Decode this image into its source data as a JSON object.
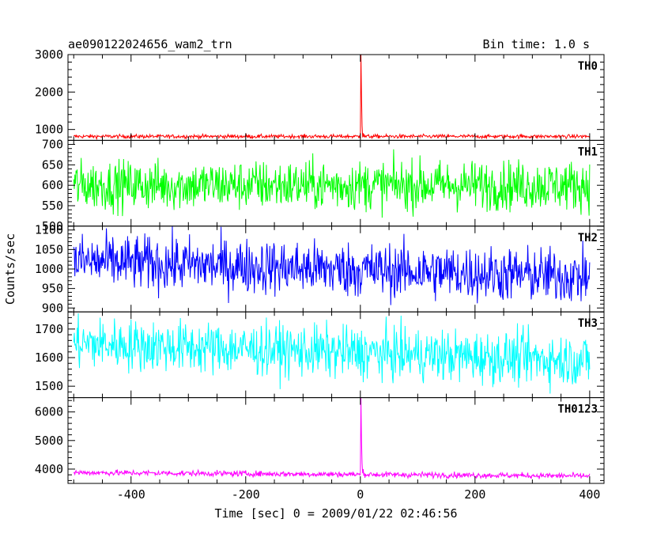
{
  "chart_data": {
    "type": "line",
    "title": "ae090122024656_wam2_trn",
    "subtitle": "Bin time: 1.0 s",
    "xlabel": "Time [sec] 0 = 2009/01/22 02:46:56",
    "ylabel": "Counts/sec",
    "xlim": [
      -510,
      425
    ],
    "xticks": [
      -400,
      -200,
      0,
      200,
      400
    ],
    "grid": false,
    "panels": [
      {
        "name": "TH0",
        "color": "#ff0000",
        "ylim": [
          710,
          3000
        ],
        "yticks": [
          1000,
          2000,
          3000
        ],
        "x_range": [
          -500,
          400
        ],
        "baseline": 815,
        "noise": 25,
        "burst": {
          "peak_time": 1,
          "peak_value": 3000,
          "decay_points": [
            [
              2,
              1900
            ],
            [
              3,
              1100
            ],
            [
              5,
              900
            ]
          ]
        }
      },
      {
        "name": "TH1",
        "color": "#00ff00",
        "ylim": [
          500,
          710
        ],
        "yticks": [
          500,
          550,
          600,
          650,
          700
        ],
        "x_range": [
          -500,
          400
        ],
        "baseline": 600,
        "noise": 30
      },
      {
        "name": "TH2",
        "color": "#0000ff",
        "ylim": [
          890,
          1110
        ],
        "yticks": [
          900,
          950,
          1000,
          1050,
          1100
        ],
        "x_range": [
          -500,
          400
        ],
        "baseline_start": 1020,
        "baseline_end": 980,
        "noise": 35
      },
      {
        "name": "TH3",
        "color": "#00ffff",
        "ylim": [
          1460,
          1760
        ],
        "yticks": [
          1500,
          1600,
          1700
        ],
        "x_range": [
          -500,
          400
        ],
        "baseline_start": 1650,
        "baseline_end": 1590,
        "noise": 45
      },
      {
        "name": "TH0123",
        "color": "#ff00ff",
        "ylim": [
          3500,
          6500
        ],
        "yticks": [
          4000,
          5000,
          6000
        ],
        "x_range": [
          -500,
          400
        ],
        "baseline_start": 3880,
        "baseline_end": 3760,
        "noise": 50,
        "burst": {
          "peak_time": 1,
          "peak_value": 6500,
          "decay_points": [
            [
              2,
              5000
            ],
            [
              3,
              4200
            ],
            [
              5,
              4000
            ]
          ]
        }
      }
    ]
  }
}
